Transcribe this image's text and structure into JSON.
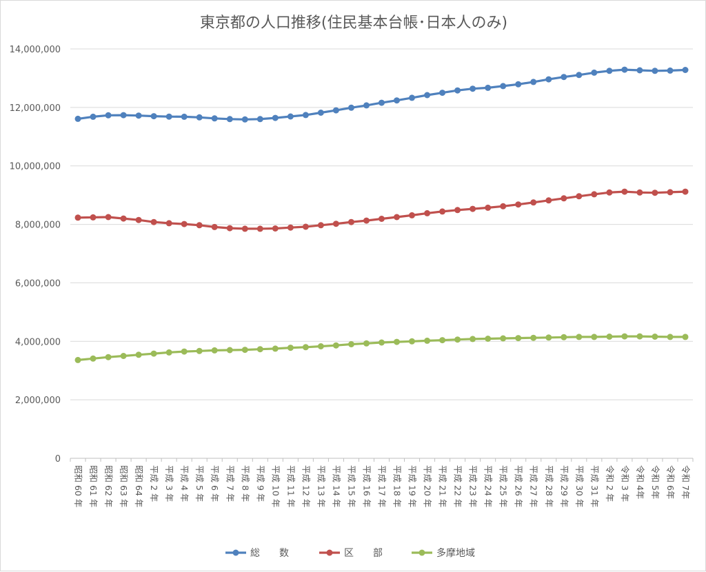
{
  "chart_data": {
    "type": "line",
    "title": "東京都の人口推移(住民基本台帳･日本人のみ)",
    "ylim": [
      0,
      14000000
    ],
    "yticks": [
      "0",
      "2,000,000",
      "4,000,000",
      "6,000,000",
      "8,000,000",
      "10,000,000",
      "12,000,000",
      "14,000,000"
    ],
    "ytick_values": [
      0,
      2000000,
      4000000,
      6000000,
      8000000,
      10000000,
      12000000,
      14000000
    ],
    "grid": true,
    "legend_position": "bottom",
    "categories": [
      "昭和 60 年",
      "昭和 61 年",
      "昭和 62 年",
      "昭和 63 年",
      "昭和 64 年",
      "平成 2 年",
      "平成 3 年",
      "平成 4 年",
      "平成 5 年",
      "平成 6 年",
      "平成 7 年",
      "平成 8 年",
      "平成 9 年",
      "平成 10 年",
      "平成 11 年",
      "平成 12 年",
      "平成 13 年",
      "平成 14 年",
      "平成 15 年",
      "平成 16 年",
      "平成 17 年",
      "平成 18 年",
      "平成 19 年",
      "平成 20 年",
      "平成 21 年",
      "平成 22 年",
      "平成 23 年",
      "平成 24 年",
      "平成 25 年",
      "平成 26 年",
      "平成 27 年",
      "平成 28 年",
      "平成 29 年",
      "平成 30 年",
      "平成 31 年",
      "令和 2 年",
      "令和 3 年",
      "令和 4年",
      "令和 5年",
      "令和 6年",
      "令和 7年"
    ],
    "series": [
      {
        "name": "総　　数",
        "color": "#4f81bd",
        "values": [
          11610000,
          11680000,
          11730000,
          11735000,
          11720000,
          11700000,
          11685000,
          11680000,
          11660000,
          11625000,
          11600000,
          11590000,
          11600000,
          11640000,
          11690000,
          11740000,
          11820000,
          11900000,
          11990000,
          12070000,
          12160000,
          12240000,
          12330000,
          12420000,
          12500000,
          12580000,
          12640000,
          12670000,
          12730000,
          12790000,
          12870000,
          12960000,
          13040000,
          13110000,
          13190000,
          13250000,
          13290000,
          13270000,
          13250000,
          13260000,
          13280000
        ]
      },
      {
        "name": "区　　部",
        "color": "#c0504d",
        "values": [
          8230000,
          8240000,
          8250000,
          8200000,
          8150000,
          8080000,
          8040000,
          8010000,
          7970000,
          7910000,
          7870000,
          7850000,
          7850000,
          7860000,
          7890000,
          7920000,
          7970000,
          8020000,
          8080000,
          8130000,
          8190000,
          8250000,
          8310000,
          8380000,
          8440000,
          8490000,
          8530000,
          8570000,
          8620000,
          8680000,
          8750000,
          8820000,
          8890000,
          8960000,
          9030000,
          9090000,
          9120000,
          9090000,
          9080000,
          9100000,
          9120000
        ]
      },
      {
        "name": "多摩地域",
        "color": "#9bbb59",
        "values": [
          3360000,
          3410000,
          3460000,
          3500000,
          3540000,
          3580000,
          3620000,
          3650000,
          3670000,
          3690000,
          3700000,
          3710000,
          3730000,
          3750000,
          3780000,
          3800000,
          3830000,
          3860000,
          3900000,
          3930000,
          3960000,
          3980000,
          4000000,
          4020000,
          4040000,
          4060000,
          4080000,
          4090000,
          4100000,
          4110000,
          4120000,
          4130000,
          4140000,
          4150000,
          4150000,
          4160000,
          4170000,
          4170000,
          4160000,
          4150000,
          4150000
        ]
      }
    ]
  }
}
